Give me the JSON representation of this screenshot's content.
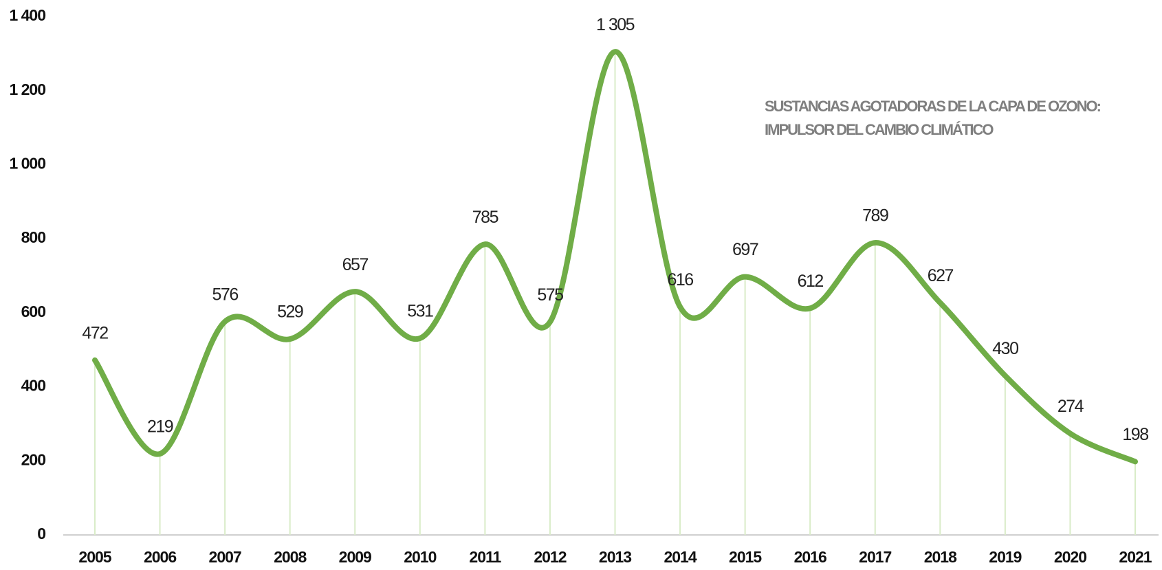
{
  "chart_data": {
    "type": "line",
    "title": [
      "SUSTANCIAS AGOTADORAS DE LA CAPA DE OZONO:",
      "IMPULSOR DEL CAMBIO CLIMÁTICO"
    ],
    "categories": [
      "2005",
      "2006",
      "2007",
      "2008",
      "2009",
      "2010",
      "2011",
      "2012",
      "2013",
      "2014",
      "2015",
      "2016",
      "2017",
      "2018",
      "2019",
      "2020",
      "2021"
    ],
    "series": [
      {
        "name": "Sustancias agotadoras de la capa de ozono",
        "color": "#70ad47",
        "values": [
          472,
          219,
          576,
          529,
          657,
          531,
          785,
          575,
          1305,
          616,
          697,
          612,
          789,
          627,
          430,
          274,
          198
        ],
        "value_labels": [
          "472",
          "219",
          "576",
          "529",
          "657",
          "531",
          "785",
          "575",
          "1 305",
          "616",
          "697",
          "612",
          "789",
          "627",
          "430",
          "274",
          "198"
        ]
      }
    ],
    "ylim": [
      0,
      1400
    ],
    "yticks": [
      0,
      200,
      400,
      600,
      800,
      {
        "value": 1000,
        "label": "1 000"
      },
      {
        "value": 1200,
        "label": "1 200"
      },
      {
        "value": 1400,
        "label": "1 400"
      }
    ],
    "drop_lines_color": "#d9ecc8"
  }
}
